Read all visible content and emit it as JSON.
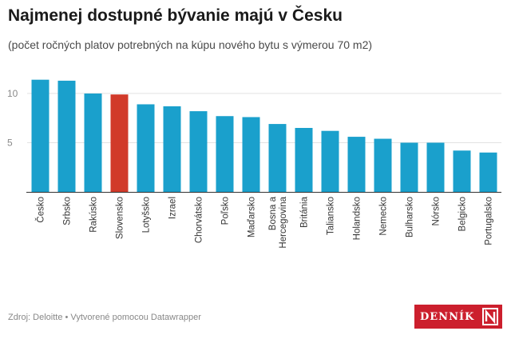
{
  "header": {
    "title": "Najmenej dostupné bývanie majú v Česku",
    "subtitle": "(počet ročných platov potrebných na kúpu nového bytu s výmerou 70 m2)"
  },
  "footer": {
    "source": "Zdroj: Deloitte • Vytvorené pomocou Datawrapper",
    "logo_text": "DENNÍK",
    "logo_mark": "N",
    "logo_color": "#cc1f2d"
  },
  "chart_data": {
    "type": "bar",
    "categories": [
      "Česko",
      "Srbsko",
      "Rakúsko",
      "Slovensko",
      "Lotyšsko",
      "Izrael",
      "Chorvátsko",
      "Poľsko",
      "Maďarsko",
      "Bosna a Hercegovina",
      "Británia",
      "Taliansko",
      "Holandsko",
      "Nemecko",
      "Bulharsko",
      "Nórsko",
      "Belgicko",
      "Portugalsko"
    ],
    "values": [
      11.4,
      11.3,
      10.0,
      9.9,
      8.9,
      8.7,
      8.2,
      7.7,
      7.6,
      6.9,
      6.5,
      6.2,
      5.6,
      5.4,
      5.0,
      5.0,
      4.2,
      4.0
    ],
    "ylim": [
      0,
      13
    ],
    "yticks": [
      5,
      10
    ],
    "grid": true,
    "bar_color": "#1aa0cc",
    "highlight_color": "#d13a2a",
    "highlight_category": "Slovensko"
  }
}
